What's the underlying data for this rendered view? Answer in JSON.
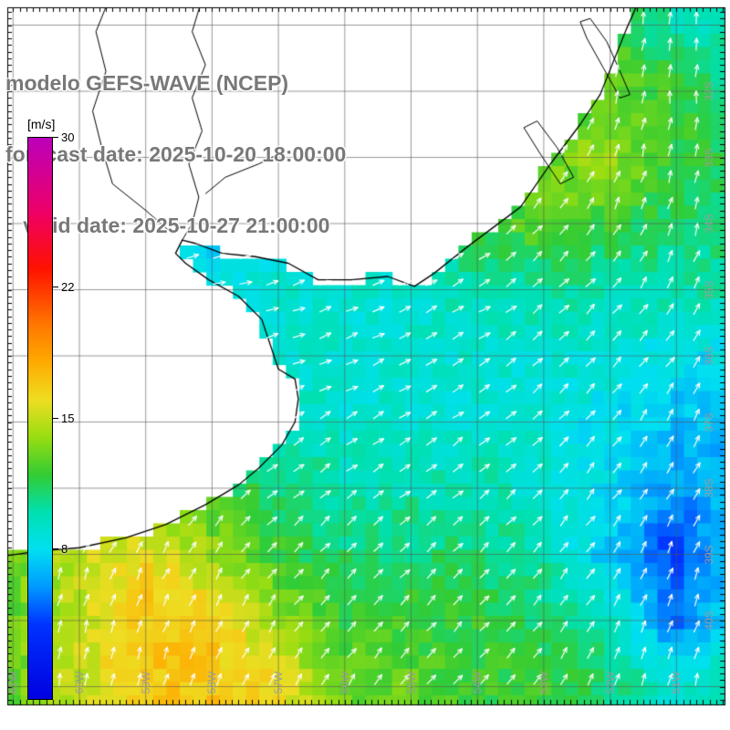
{
  "header": {
    "model_line": "modelo GEFS-WAVE (NCEP)",
    "forecast_line": "forecast date: 2025-10-20 18:00:00",
    "valid_line": "   valid date: 2025-10-27 21:00:00"
  },
  "colorbar": {
    "unit": "[m/s]",
    "min": 0,
    "max": 30,
    "ticks": [
      {
        "label": "30",
        "value": 30
      },
      {
        "label": "22",
        "value": 22
      },
      {
        "label": "15",
        "value": 15
      },
      {
        "label": "8",
        "value": 8
      }
    ],
    "stops": [
      {
        "v": 0,
        "c": "#0000e0"
      },
      {
        "v": 4,
        "c": "#0033ff"
      },
      {
        "v": 6,
        "c": "#0099ff"
      },
      {
        "v": 8,
        "c": "#00e0f0"
      },
      {
        "v": 10,
        "c": "#00e0b0"
      },
      {
        "v": 12,
        "c": "#33cc33"
      },
      {
        "v": 14,
        "c": "#99dd11"
      },
      {
        "v": 16,
        "c": "#eedd22"
      },
      {
        "v": 18,
        "c": "#ffaa00"
      },
      {
        "v": 20,
        "c": "#ff7700"
      },
      {
        "v": 23,
        "c": "#ff1100"
      },
      {
        "v": 26,
        "c": "#ee0066"
      },
      {
        "v": 30,
        "c": "#bb00bb"
      }
    ]
  },
  "map": {
    "lat_labels": [
      {
        "text": "32S",
        "lat": 32
      },
      {
        "text": "33S",
        "lat": 33
      },
      {
        "text": "34S",
        "lat": 34
      },
      {
        "text": "35S",
        "lat": 35
      },
      {
        "text": "36S",
        "lat": 36
      },
      {
        "text": "37S",
        "lat": 37
      },
      {
        "text": "38S",
        "lat": 38
      },
      {
        "text": "39S",
        "lat": 39
      },
      {
        "text": "40S",
        "lat": 40
      }
    ],
    "lon_labels": [
      {
        "text": "61W",
        "lon": 61
      },
      {
        "text": "60W",
        "lon": 60
      },
      {
        "text": "59W",
        "lon": 59
      },
      {
        "text": "58W",
        "lon": 58
      },
      {
        "text": "57W",
        "lon": 57
      },
      {
        "text": "56W",
        "lon": 56
      },
      {
        "text": "55W",
        "lon": 55
      },
      {
        "text": "54W",
        "lon": 54
      },
      {
        "text": "53W",
        "lon": 53
      },
      {
        "text": "52W",
        "lon": 52
      },
      {
        "text": "51W",
        "lon": 51
      }
    ],
    "grid_color": "#555555",
    "coast_color": "#000000",
    "arrow_color": "#ffffff"
  },
  "field": {
    "units": "m/s",
    "lons": [
      61,
      60,
      59,
      58,
      57,
      56,
      55,
      54,
      53,
      52,
      51,
      50
    ],
    "lats": [
      31,
      32,
      33,
      34,
      35,
      36,
      37,
      38,
      39,
      40,
      41
    ],
    "speed": [
      [
        10,
        10,
        10,
        10,
        10,
        10,
        10,
        10,
        11,
        12,
        10,
        10
      ],
      [
        10,
        10,
        10,
        10,
        10,
        10,
        10,
        10,
        12,
        13,
        12,
        10
      ],
      [
        9,
        9,
        9,
        9,
        9,
        9,
        9,
        10,
        13,
        14,
        12,
        11
      ],
      [
        8,
        8,
        8,
        8,
        8,
        8,
        9,
        12,
        13,
        12,
        11,
        11
      ],
      [
        8,
        8,
        8,
        8,
        9,
        9,
        9,
        10,
        10,
        10,
        10,
        10
      ],
      [
        9,
        9,
        9,
        9,
        9,
        9,
        9,
        9,
        9,
        9,
        8,
        8
      ],
      [
        11,
        11,
        11,
        10,
        10,
        9,
        9,
        9,
        9,
        8,
        7,
        7
      ],
      [
        13,
        13,
        14,
        12,
        11,
        10,
        10,
        10,
        9,
        8,
        6,
        7
      ],
      [
        13,
        15,
        16,
        14,
        12,
        11,
        11,
        11,
        10,
        7,
        4,
        8
      ],
      [
        13,
        15,
        17,
        17,
        14,
        12,
        12,
        12,
        11,
        10,
        5,
        9
      ],
      [
        13,
        15,
        17,
        17,
        16,
        13,
        13,
        12,
        12,
        11,
        9,
        10
      ]
    ],
    "direction_deg": [
      [
        30,
        30,
        30,
        30,
        30,
        30,
        30,
        40,
        60,
        75,
        85,
        90
      ],
      [
        30,
        30,
        30,
        30,
        30,
        30,
        30,
        40,
        60,
        75,
        85,
        90
      ],
      [
        25,
        25,
        25,
        25,
        25,
        25,
        30,
        40,
        55,
        70,
        80,
        85
      ],
      [
        20,
        20,
        20,
        20,
        20,
        20,
        25,
        35,
        50,
        60,
        70,
        80
      ],
      [
        15,
        15,
        15,
        15,
        18,
        20,
        25,
        30,
        40,
        50,
        60,
        70
      ],
      [
        20,
        20,
        20,
        20,
        22,
        25,
        28,
        32,
        40,
        48,
        55,
        65
      ],
      [
        35,
        35,
        35,
        32,
        30,
        30,
        32,
        36,
        42,
        50,
        58,
        65
      ],
      [
        55,
        55,
        50,
        45,
        40,
        38,
        38,
        40,
        45,
        52,
        60,
        68
      ],
      [
        70,
        68,
        62,
        55,
        48,
        44,
        42,
        44,
        48,
        55,
        65,
        72
      ],
      [
        78,
        75,
        70,
        62,
        55,
        50,
        48,
        48,
        52,
        60,
        70,
        78
      ],
      [
        82,
        80,
        75,
        68,
        60,
        55,
        52,
        52,
        55,
        62,
        72,
        80
      ]
    ],
    "cell_deg": 0.2,
    "arrow_step_deg": 0.4
  },
  "geo": {
    "land_polygon": [
      [
        51.55,
        30.6
      ],
      [
        51.75,
        31.05
      ],
      [
        51.95,
        31.55
      ],
      [
        52.15,
        32.05
      ],
      [
        52.45,
        32.5
      ],
      [
        52.9,
        33.1
      ],
      [
        53.35,
        33.75
      ],
      [
        53.75,
        34.05
      ],
      [
        54.15,
        34.35
      ],
      [
        54.65,
        34.75
      ],
      [
        54.95,
        34.95
      ],
      [
        55.35,
        34.8
      ],
      [
        55.9,
        34.85
      ],
      [
        56.4,
        34.85
      ],
      [
        56.85,
        34.6
      ],
      [
        57.35,
        34.5
      ],
      [
        57.85,
        34.45
      ],
      [
        58.25,
        34.3
      ],
      [
        58.45,
        34.25
      ],
      [
        58.55,
        34.45
      ],
      [
        58.4,
        34.6
      ],
      [
        58.05,
        34.85
      ],
      [
        57.6,
        35.1
      ],
      [
        57.25,
        35.45
      ],
      [
        57.1,
        35.9
      ],
      [
        57.0,
        36.2
      ],
      [
        56.75,
        36.35
      ],
      [
        56.7,
        36.65
      ],
      [
        56.75,
        37.0
      ],
      [
        56.95,
        37.35
      ],
      [
        57.3,
        37.7
      ],
      [
        57.6,
        37.95
      ],
      [
        58.1,
        38.25
      ],
      [
        58.7,
        38.55
      ],
      [
        59.3,
        38.75
      ],
      [
        60.0,
        38.9
      ],
      [
        60.6,
        38.95
      ],
      [
        61.3,
        39.05
      ],
      [
        61.5,
        39.1
      ],
      [
        61.5,
        30.5
      ],
      [
        51.55,
        30.5
      ]
    ],
    "coastline_end_index": 38,
    "rivers": [
      [
        [
          58.15,
          30.6
        ],
        [
          58.3,
          31.1
        ],
        [
          58.1,
          31.6
        ],
        [
          58.3,
          32.1
        ],
        [
          58.15,
          32.6
        ],
        [
          58.35,
          33.1
        ],
        [
          58.2,
          33.6
        ],
        [
          58.3,
          34.0
        ],
        [
          58.45,
          34.25
        ]
      ],
      [
        [
          59.55,
          30.6
        ],
        [
          59.75,
          31.1
        ],
        [
          59.6,
          31.7
        ],
        [
          59.8,
          32.3
        ],
        [
          59.65,
          32.9
        ],
        [
          59.5,
          33.4
        ],
        [
          59.0,
          33.8
        ],
        [
          58.6,
          34.15
        ]
      ],
      [
        [
          56.9,
          32.9
        ],
        [
          57.3,
          33.1
        ],
        [
          57.8,
          33.3
        ],
        [
          58.1,
          33.55
        ]
      ]
    ],
    "lagoons": [
      [
        [
          52.3,
          30.9
        ],
        [
          52.05,
          31.25
        ],
        [
          51.85,
          31.7
        ],
        [
          51.7,
          32.05
        ],
        [
          51.85,
          32.1
        ],
        [
          52.1,
          31.65
        ],
        [
          52.35,
          31.2
        ],
        [
          52.45,
          30.95
        ]
      ],
      [
        [
          53.1,
          32.45
        ],
        [
          52.8,
          32.85
        ],
        [
          52.55,
          33.3
        ],
        [
          52.75,
          33.4
        ],
        [
          53.05,
          32.95
        ],
        [
          53.3,
          32.55
        ]
      ]
    ]
  }
}
